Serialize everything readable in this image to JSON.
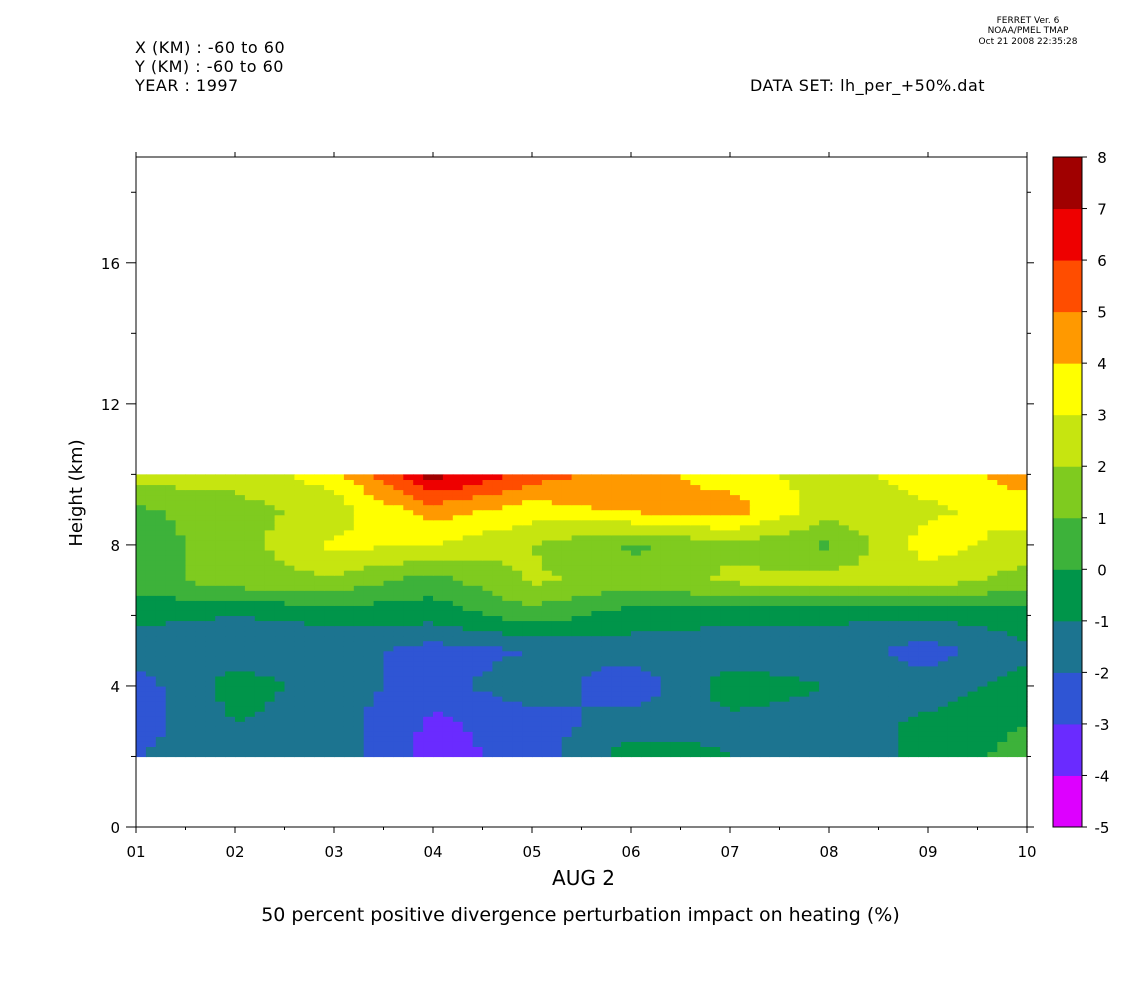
{
  "header": {
    "x_range": "X (KM) : -60 to 60",
    "y_range": "Y (KM) : -60 to 60",
    "year": "YEAR : 1997",
    "data_set": "DATA SET: lh_per_+50%.dat",
    "stamp_line1": "FERRET Ver. 6",
    "stamp_line2": "NOAA/PMEL TMAP",
    "stamp_line3": "Oct 21 2008 22:35:28"
  },
  "chart_data": {
    "type": "heatmap",
    "title": "50 percent positive divergence perturbation impact on heating (%)",
    "xlabel": "AUG 2",
    "ylabel": "Height (km)",
    "x_ticks": [
      "01",
      "02",
      "03",
      "04",
      "05",
      "06",
      "07",
      "08",
      "09",
      "10"
    ],
    "x": [
      1,
      2,
      3,
      4,
      5,
      6,
      7,
      8,
      9,
      10
    ],
    "y_ticks": [
      "0",
      "4",
      "8",
      "12",
      "16"
    ],
    "y_tick_values": [
      0,
      4,
      8,
      12,
      16
    ],
    "ylim": [
      0,
      19
    ],
    "xlim": [
      1,
      10
    ],
    "heights": [
      2,
      3,
      4,
      5,
      6,
      7,
      8,
      9,
      10
    ],
    "values": [
      [
        -2.0,
        -1.5,
        -1.5,
        -3.5,
        -2.5,
        -0.5,
        -1.0,
        -1.5,
        -0.8,
        0.5
      ],
      [
        -2.5,
        -1.0,
        -1.5,
        -3.2,
        -2.5,
        -1.5,
        -1.2,
        -1.5,
        -0.8,
        0.0
      ],
      [
        -2.5,
        -0.5,
        -1.5,
        -2.5,
        -1.2,
        -2.8,
        -0.5,
        -1.0,
        -1.5,
        -0.5
      ],
      [
        -1.5,
        -1.5,
        -1.5,
        -2.5,
        -2.0,
        -1.5,
        -1.5,
        -1.5,
        -2.5,
        -1.2
      ],
      [
        -0.8,
        -1.0,
        -0.8,
        -0.6,
        0.5,
        -0.5,
        -0.8,
        -0.8,
        -0.8,
        -0.5
      ],
      [
        0.5,
        1.5,
        1.8,
        0.5,
        2.2,
        1.5,
        2.2,
        2.5,
        2.5,
        1.5
      ],
      [
        0.5,
        1.5,
        3.2,
        3.0,
        2.0,
        0.8,
        1.8,
        0.8,
        3.5,
        2.5
      ],
      [
        0.8,
        1.5,
        2.5,
        4.5,
        3.5,
        4.2,
        4.5,
        2.5,
        2.8,
        3.5
      ],
      [
        2.5,
        2.5,
        3.5,
        7.5,
        5.5,
        4.5,
        3.5,
        2.5,
        3.5,
        4.5
      ]
    ],
    "levels": [
      -5,
      -4,
      -3,
      -2,
      -1,
      0,
      1,
      2,
      3,
      4,
      5,
      6,
      7,
      8
    ],
    "colors": [
      "#dd00ff",
      "#6a2bff",
      "#2f55d4",
      "#1c7490",
      "#00954a",
      "#3db23a",
      "#7fcb1f",
      "#c6e510",
      "#ffff00",
      "#ff9900",
      "#ff4d00",
      "#ee0000",
      "#a00000"
    ],
    "colorbar_labels": [
      "8",
      "7",
      "6",
      "5",
      "4",
      "3",
      "2",
      "1",
      "0",
      "-1",
      "-2",
      "-3",
      "-4",
      "-5"
    ]
  }
}
